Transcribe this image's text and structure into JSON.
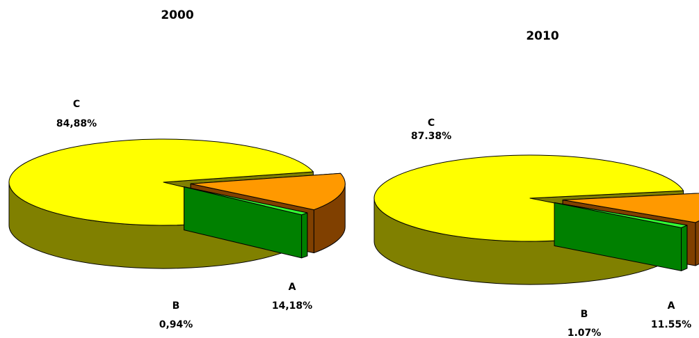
{
  "chart_data": [
    {
      "type": "pie3d",
      "title": "2000",
      "categories": [
        "A",
        "B",
        "C"
      ],
      "values": [
        14.18,
        0.94,
        84.88
      ],
      "value_labels": [
        "14,18%",
        "0,94%",
        "84,88%"
      ],
      "colors": [
        "#ff9900",
        "#33ff33",
        "#ffff00"
      ],
      "side_colors": [
        "#804000",
        "#008000",
        "#808000"
      ]
    },
    {
      "type": "pie3d",
      "title": "2010",
      "categories": [
        "A",
        "B",
        "C"
      ],
      "values": [
        11.55,
        1.07,
        87.38
      ],
      "value_labels": [
        "11.55%",
        "1.07%",
        "87.38%"
      ],
      "colors": [
        "#ff9900",
        "#33ff33",
        "#ffff00"
      ],
      "side_colors": [
        "#804000",
        "#008000",
        "#808000"
      ]
    }
  ]
}
